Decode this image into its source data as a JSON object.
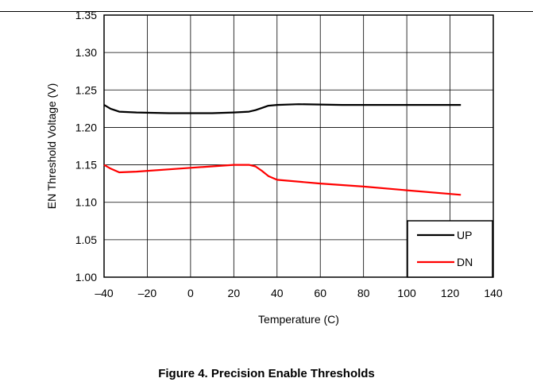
{
  "caption": "Figure 4. Precision Enable Thresholds",
  "chart_data": {
    "type": "line",
    "xlabel": "Temperature (C)",
    "ylabel": "EN Threshold Voltage (V)",
    "xlim": [
      -40,
      140
    ],
    "ylim": [
      1.0,
      1.35
    ],
    "x_ticks": [
      "–40",
      "–20",
      "0",
      "20",
      "40",
      "60",
      "80",
      "100",
      "120",
      "140"
    ],
    "y_ticks": [
      "1.00",
      "1.05",
      "1.10",
      "1.15",
      "1.20",
      "1.25",
      "1.30",
      "1.35"
    ],
    "grid": true,
    "legend_position": "bottom-right",
    "series": [
      {
        "name": "UP",
        "color": "#000000",
        "x": [
          -40,
          -37,
          -33,
          -25,
          -10,
          0,
          10,
          20,
          27,
          30,
          33,
          36,
          40,
          50,
          70,
          100,
          125
        ],
        "y": [
          1.23,
          1.225,
          1.221,
          1.22,
          1.219,
          1.219,
          1.219,
          1.22,
          1.221,
          1.223,
          1.226,
          1.229,
          1.23,
          1.231,
          1.23,
          1.23,
          1.23
        ]
      },
      {
        "name": "DN",
        "color": "#ff0000",
        "x": [
          -40,
          -37,
          -33,
          -25,
          0,
          20,
          27,
          30,
          33,
          36,
          40,
          60,
          80,
          100,
          125
        ],
        "y": [
          1.15,
          1.145,
          1.14,
          1.141,
          1.146,
          1.15,
          1.15,
          1.148,
          1.142,
          1.135,
          1.13,
          1.125,
          1.121,
          1.116,
          1.11
        ]
      }
    ]
  }
}
